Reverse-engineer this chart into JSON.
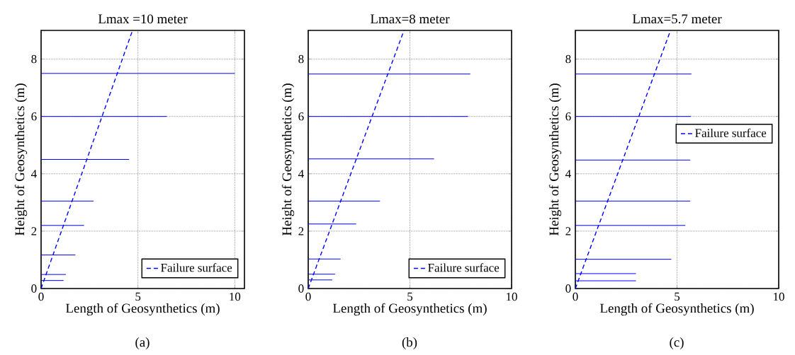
{
  "chart_data": [
    {
      "type": "line",
      "title": "Lmax =10 meter",
      "xlabel": "Length of Geosynthetics (m)",
      "ylabel": "Height of Geosynthetics (m)",
      "annotations": [
        "(a)"
      ],
      "xlim": [
        0,
        10.5
      ],
      "ylim": [
        0,
        9
      ],
      "xticks": [
        0,
        5,
        10
      ],
      "yticks": [
        0,
        2,
        4,
        6,
        8
      ],
      "grid": true,
      "legend": "bottom right",
      "marker": "none",
      "series": [
        {
          "color": "#0000ff",
          "x": [
            0,
            1.16
          ],
          "values": [
            0.28,
            0.28
          ]
        },
        {
          "color": "#0000ff",
          "x": [
            0,
            1.28
          ],
          "values": [
            0.49,
            0.49
          ]
        },
        {
          "color": "#0000ff",
          "x": [
            0,
            1.77
          ],
          "values": [
            1.17,
            1.17
          ]
        },
        {
          "color": "#0000ff",
          "x": [
            0,
            2.22
          ],
          "values": [
            2.2,
            2.2
          ]
        },
        {
          "color": "#0000ff",
          "x": [
            0,
            2.71
          ],
          "values": [
            3.05,
            3.05
          ]
        },
        {
          "color": "#0000ff",
          "x": [
            0,
            4.54
          ],
          "values": [
            4.5,
            4.5
          ]
        },
        {
          "color": "#0000ff",
          "x": [
            0,
            6.49
          ],
          "values": [
            6.0,
            6.0
          ]
        },
        {
          "color": "#0000ff",
          "x": [
            0,
            10
          ],
          "values": [
            7.5,
            7.5
          ]
        },
        {
          "name": "Failure surface",
          "color": "#0000ff",
          "line_style": "dashed",
          "x": [
            0,
            4.72
          ],
          "values": [
            0,
            9
          ]
        }
      ]
    },
    {
      "type": "line",
      "title": "Lmax=8 meter",
      "xlabel": "Length of Geosynthetics (m)",
      "ylabel": "Height of Geosynthetics (m)",
      "annotations": [
        "(b)"
      ],
      "xlim": [
        0,
        10
      ],
      "ylim": [
        0,
        9
      ],
      "xticks": [
        0,
        5,
        10
      ],
      "yticks": [
        0,
        2,
        4,
        6,
        8
      ],
      "grid": true,
      "legend": "bottom right",
      "marker": "none",
      "series": [
        {
          "color": "#0000ff",
          "x": [
            0,
            1.18
          ],
          "values": [
            0.3,
            0.3
          ]
        },
        {
          "color": "#0000ff",
          "x": [
            0,
            1.32
          ],
          "values": [
            0.5,
            0.5
          ]
        },
        {
          "color": "#0000ff",
          "x": [
            0,
            1.59
          ],
          "values": [
            1.03,
            1.03
          ]
        },
        {
          "color": "#0000ff",
          "x": [
            0,
            2.36
          ],
          "values": [
            2.25,
            2.25
          ]
        },
        {
          "color": "#0000ff",
          "x": [
            0,
            3.53
          ],
          "values": [
            3.05,
            3.05
          ]
        },
        {
          "color": "#0000ff",
          "x": [
            0,
            6.19
          ],
          "values": [
            4.52,
            4.52
          ]
        },
        {
          "color": "#0000ff",
          "x": [
            0,
            7.86
          ],
          "values": [
            6.0,
            6.0
          ]
        },
        {
          "color": "#0000ff",
          "x": [
            0,
            7.97
          ],
          "values": [
            7.48,
            7.48
          ]
        },
        {
          "name": "Failure surface",
          "color": "#0000ff",
          "line_style": "dashed",
          "x": [
            0,
            4.71
          ],
          "values": [
            0,
            9
          ]
        }
      ]
    },
    {
      "type": "line",
      "title": "Lmax=5.7 meter",
      "xlabel": "Length of Geosynthetics (m)",
      "ylabel": "Height of Geosynthetics (m)",
      "annotations": [
        "(c)"
      ],
      "xlim": [
        0,
        10
      ],
      "ylim": [
        0,
        9
      ],
      "xticks": [
        0,
        5,
        10
      ],
      "yticks": [
        0,
        2,
        4,
        6,
        8
      ],
      "grid": true,
      "legend": "right",
      "marker": "none",
      "series": [
        {
          "color": "#0000ff",
          "x": [
            0,
            2.98
          ],
          "values": [
            0.27,
            0.27
          ]
        },
        {
          "color": "#0000ff",
          "x": [
            0,
            2.98
          ],
          "values": [
            0.52,
            0.52
          ]
        },
        {
          "color": "#0000ff",
          "x": [
            0,
            4.72
          ],
          "values": [
            1.02,
            1.02
          ]
        },
        {
          "color": "#0000ff",
          "x": [
            0,
            5.41
          ],
          "values": [
            2.2,
            2.2
          ]
        },
        {
          "color": "#0000ff",
          "x": [
            0,
            5.65
          ],
          "values": [
            3.05,
            3.05
          ]
        },
        {
          "color": "#0000ff",
          "x": [
            0,
            5.65
          ],
          "values": [
            4.48,
            4.48
          ]
        },
        {
          "color": "#0000ff",
          "x": [
            0,
            5.68
          ],
          "values": [
            6.0,
            6.0
          ]
        },
        {
          "color": "#0000ff",
          "x": [
            0,
            5.71
          ],
          "values": [
            7.48,
            7.48
          ]
        },
        {
          "name": "Failure surface",
          "color": "#0000ff",
          "line_style": "dashed",
          "x": [
            0,
            4.68
          ],
          "values": [
            0,
            9
          ]
        }
      ]
    }
  ]
}
